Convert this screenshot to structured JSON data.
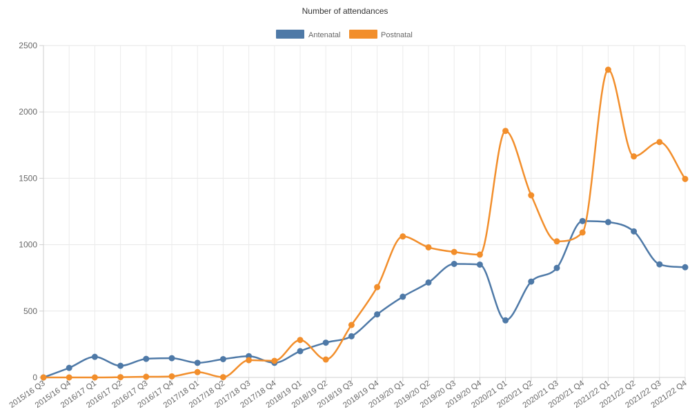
{
  "chart_data": {
    "type": "line",
    "title": "Number of attendances",
    "xlabel": "",
    "ylabel": "",
    "categories": [
      "2015/16 Q3",
      "2015/16 Q4",
      "2016/17 Q1",
      "2016/17 Q2",
      "2016/17 Q3",
      "2016/17 Q4",
      "2017/18 Q1",
      "2017/18 Q2",
      "2017/18 Q3",
      "2017/18 Q4",
      "2018/19 Q1",
      "2018/19 Q2",
      "2018/19 Q3",
      "2018/19 Q4",
      "2019/20 Q1",
      "2019/20 Q2",
      "2019/20 Q3",
      "2019/20 Q4",
      "2020/21 Q1",
      "2020/21 Q2",
      "2020/21 Q3",
      "2020/21 Q4",
      "2021/22 Q1",
      "2021/22 Q2",
      "2021/22 Q3",
      "2021/22 Q4"
    ],
    "ylim": [
      0,
      2500
    ],
    "yticks": [
      0,
      500,
      1000,
      1500,
      2000,
      2500
    ],
    "grid": true,
    "legend_position": "top-center",
    "series": [
      {
        "name": "Antenatal",
        "color": "#4e79a7",
        "values": [
          0,
          72,
          155,
          88,
          140,
          145,
          110,
          138,
          160,
          110,
          198,
          262,
          310,
          475,
          608,
          715,
          855,
          850,
          430,
          722,
          825,
          1178,
          1170,
          1100,
          852,
          830
        ]
      },
      {
        "name": "Postnatal",
        "color": "#f28e2b",
        "values": [
          0,
          0,
          0,
          2,
          5,
          8,
          40,
          2,
          130,
          125,
          282,
          135,
          395,
          680,
          1062,
          980,
          945,
          925,
          1857,
          1372,
          1025,
          1092,
          2318,
          1665,
          1773,
          1495
        ]
      }
    ]
  }
}
